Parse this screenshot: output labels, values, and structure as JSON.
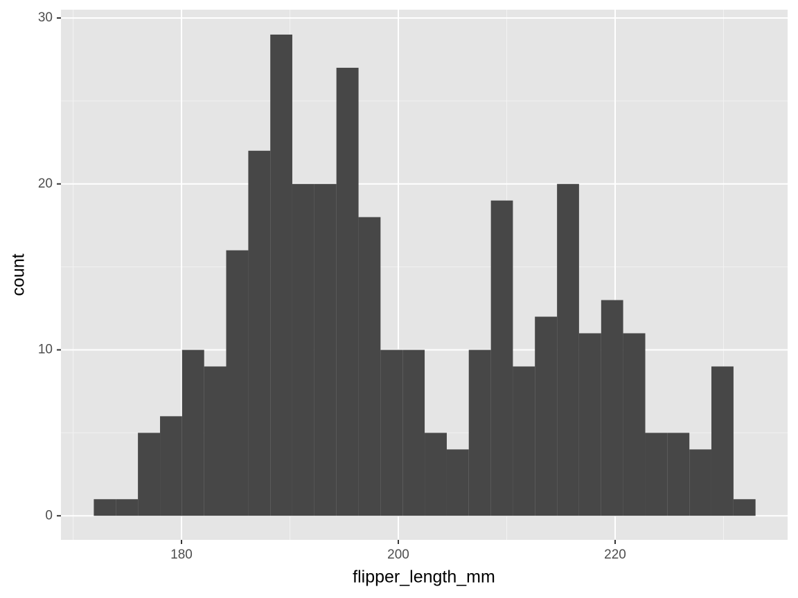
{
  "chart_data": {
    "type": "histogram",
    "x_label": "flipper_length_mm",
    "y_label": "count",
    "bins": [
      171.91,
      173.95,
      175.98,
      178.02,
      180.05,
      182.09,
      184.12,
      186.16,
      188.19,
      190.22,
      192.26,
      194.29,
      196.33,
      198.36,
      200.4,
      202.43,
      204.47,
      206.5,
      208.54,
      210.57,
      212.6,
      214.64,
      216.67,
      218.71,
      220.74,
      222.78,
      224.81,
      226.85,
      228.88,
      230.92,
      232.95
    ],
    "values": [
      1,
      1,
      5,
      6,
      10,
      9,
      16,
      22,
      29,
      20,
      20,
      27,
      18,
      10,
      10,
      5,
      4,
      10,
      19,
      9,
      12,
      20,
      11,
      13,
      11,
      5,
      5,
      4,
      9,
      1
    ],
    "color": "#474747",
    "xlim": [
      168.88,
      235.91
    ],
    "xticks": [
      180,
      200,
      220
    ],
    "ylim": [
      -1.45,
      30.5
    ],
    "yticks": [
      0,
      10,
      20,
      30
    ],
    "grid": true
  }
}
